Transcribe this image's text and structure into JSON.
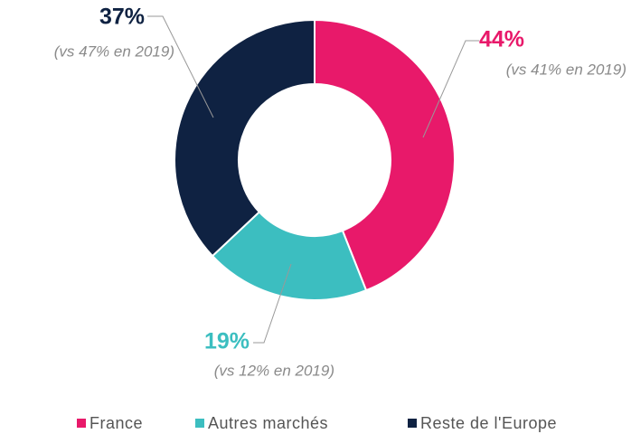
{
  "chart_data": {
    "type": "donut",
    "categories": [
      "France",
      "Autres marchés",
      "Reste de l'Europe"
    ],
    "values": [
      44,
      19,
      37
    ],
    "value_labels": [
      "44%",
      "19%",
      "37%"
    ],
    "annotations": [
      "(vs 41% en 2019)",
      "(vs 12% en 2019)",
      "(vs 47% en 2019)"
    ],
    "colors": [
      "#e8196a",
      "#3cbec0",
      "#0f2242"
    ],
    "legend": "bottom"
  }
}
